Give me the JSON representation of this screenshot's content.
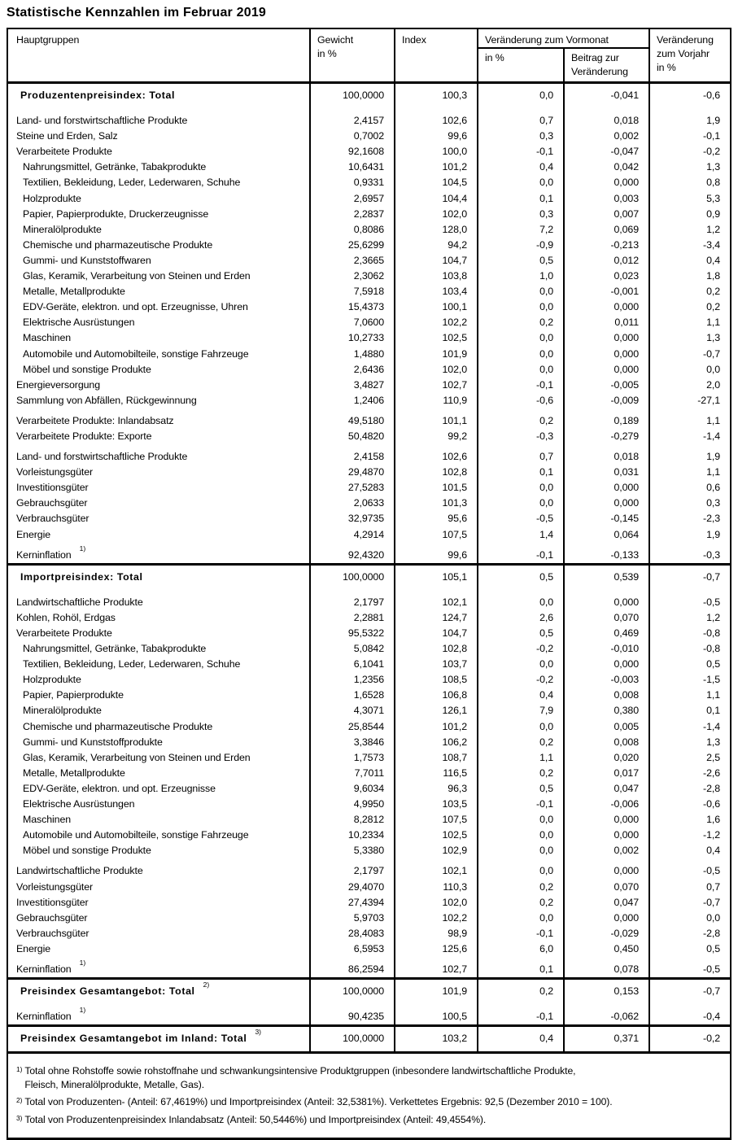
{
  "title": "Statistische Kennzahlen im Februar 2019",
  "colors": {
    "text": "#000000",
    "border": "#000000",
    "background": "#ffffff"
  },
  "header": {
    "hauptgruppen": "Hauptgruppen",
    "gewicht": [
      "Gewicht",
      "in %"
    ],
    "index": "Index",
    "vormonat_group": "Veränderung zum Vormonat",
    "vormonat_pct": "in %",
    "vormonat_beitrag": [
      "Beitrag zur",
      "Veränderung"
    ],
    "vorjahr": [
      "Veränderung",
      "zum Vorjahr",
      "in %"
    ]
  },
  "value_columns": [
    "gewicht",
    "index",
    "vormonat-pct",
    "vormonat-beitrag",
    "vorjahr"
  ],
  "sections": [
    {
      "id": "produzentenpreisindex",
      "groups": [
        {
          "rows": [
            {
              "label": "Produzentenpreisindex: Total",
              "bold": true,
              "values": [
                "100,0000",
                "100,3",
                "0,0",
                "-0,041",
                "-0,6"
              ]
            }
          ]
        },
        {
          "rows": [
            {
              "label": "Land- und forstwirtschaftliche Produkte",
              "values": [
                "2,4157",
                "102,6",
                "0,7",
                "0,018",
                "1,9"
              ]
            },
            {
              "label": "Steine und Erden, Salz",
              "values": [
                "0,7002",
                "99,6",
                "0,3",
                "0,002",
                "-0,1"
              ]
            },
            {
              "label": "Verarbeitete Produkte",
              "values": [
                "92,1608",
                "100,0",
                "-0,1",
                "-0,047",
                "-0,2"
              ]
            },
            {
              "label": "Nahrungsmittel, Getränke, Tabakprodukte",
              "indent": true,
              "values": [
                "10,6431",
                "101,2",
                "0,4",
                "0,042",
                "1,3"
              ]
            },
            {
              "label": "Textilien, Bekleidung, Leder, Lederwaren, Schuhe",
              "indent": true,
              "values": [
                "0,9331",
                "104,5",
                "0,0",
                "0,000",
                "0,8"
              ]
            },
            {
              "label": "Holzprodukte",
              "indent": true,
              "values": [
                "2,6957",
                "104,4",
                "0,1",
                "0,003",
                "5,3"
              ]
            },
            {
              "label": "Papier, Papierprodukte, Druckerzeugnisse",
              "indent": true,
              "values": [
                "2,2837",
                "102,0",
                "0,3",
                "0,007",
                "0,9"
              ]
            },
            {
              "label": "Mineralölprodukte",
              "indent": true,
              "values": [
                "0,8086",
                "128,0",
                "7,2",
                "0,069",
                "1,2"
              ]
            },
            {
              "label": "Chemische und pharmazeutische Produkte",
              "indent": true,
              "values": [
                "25,6299",
                "94,2",
                "-0,9",
                "-0,213",
                "-3,4"
              ]
            },
            {
              "label": "Gummi- und Kunststoffwaren",
              "indent": true,
              "values": [
                "2,3665",
                "104,7",
                "0,5",
                "0,012",
                "0,4"
              ]
            },
            {
              "label": "Glas, Keramik, Verarbeitung von Steinen und Erden",
              "indent": true,
              "values": [
                "2,3062",
                "103,8",
                "1,0",
                "0,023",
                "1,8"
              ]
            },
            {
              "label": "Metalle, Metallprodukte",
              "indent": true,
              "values": [
                "7,5918",
                "103,4",
                "0,0",
                "-0,001",
                "0,2"
              ]
            },
            {
              "label": "EDV-Geräte, elektron. und opt. Erzeugnisse, Uhren",
              "indent": true,
              "values": [
                "15,4373",
                "100,1",
                "0,0",
                "0,000",
                "0,2"
              ]
            },
            {
              "label": "Elektrische Ausrüstungen",
              "indent": true,
              "values": [
                "7,0600",
                "102,2",
                "0,2",
                "0,011",
                "1,1"
              ]
            },
            {
              "label": "Maschinen",
              "indent": true,
              "values": [
                "10,2733",
                "102,5",
                "0,0",
                "0,000",
                "1,3"
              ]
            },
            {
              "label": "Automobile und Automobilteile, sonstige Fahrzeuge",
              "indent": true,
              "values": [
                "1,4880",
                "101,9",
                "0,0",
                "0,000",
                "-0,7"
              ]
            },
            {
              "label": "Möbel und sonstige Produkte",
              "indent": true,
              "values": [
                "2,6436",
                "102,0",
                "0,0",
                "0,000",
                "0,0"
              ]
            },
            {
              "label": "Energieversorgung",
              "values": [
                "3,4827",
                "102,7",
                "-0,1",
                "-0,005",
                "2,0"
              ]
            },
            {
              "label": "Sammlung von Abfällen, Rückgewinnung",
              "values": [
                "1,2406",
                "110,9",
                "-0,6",
                "-0,009",
                "-27,1"
              ]
            }
          ]
        },
        {
          "rows": [
            {
              "label": "Verarbeitete Produkte: Inlandabsatz",
              "values": [
                "49,5180",
                "101,1",
                "0,2",
                "0,189",
                "1,1"
              ]
            },
            {
              "label": "Verarbeitete Produkte: Exporte",
              "values": [
                "50,4820",
                "99,2",
                "-0,3",
                "-0,279",
                "-1,4"
              ]
            }
          ]
        },
        {
          "rows": [
            {
              "label": "Land- und forstwirtschaftliche Produkte",
              "values": [
                "2,4158",
                "102,6",
                "0,7",
                "0,018",
                "1,9"
              ]
            },
            {
              "label": "Vorleistungsgüter",
              "values": [
                "29,4870",
                "102,8",
                "0,1",
                "0,031",
                "1,1"
              ]
            },
            {
              "label": "Investitionsgüter",
              "values": [
                "27,5283",
                "101,5",
                "0,0",
                "0,000",
                "0,6"
              ]
            },
            {
              "label": "Gebrauchsgüter",
              "values": [
                "2,0633",
                "101,3",
                "0,0",
                "0,000",
                "0,3"
              ]
            },
            {
              "label": "Verbrauchsgüter",
              "values": [
                "32,9735",
                "95,6",
                "-0,5",
                "-0,145",
                "-2,3"
              ]
            },
            {
              "label": "Energie",
              "values": [
                "4,2914",
                "107,5",
                "1,4",
                "0,064",
                "1,9"
              ]
            }
          ]
        },
        {
          "rows": [
            {
              "label": "Kerninflation",
              "sup": "1)",
              "values": [
                "92,4320",
                "99,6",
                "-0,1",
                "-0,133",
                "-0,3"
              ]
            }
          ]
        }
      ]
    },
    {
      "id": "importpreisindex",
      "groups": [
        {
          "rows": [
            {
              "label": "Importpreisindex: Total",
              "bold": true,
              "values": [
                "100,0000",
                "105,1",
                "0,5",
                "0,539",
                "-0,7"
              ]
            }
          ]
        },
        {
          "rows": [
            {
              "label": "Landwirtschaftliche Produkte",
              "values": [
                "2,1797",
                "102,1",
                "0,0",
                "0,000",
                "-0,5"
              ]
            },
            {
              "label": "Kohlen, Rohöl, Erdgas",
              "values": [
                "2,2881",
                "124,7",
                "2,6",
                "0,070",
                "1,2"
              ]
            },
            {
              "label": "Verarbeitete Produkte",
              "values": [
                "95,5322",
                "104,7",
                "0,5",
                "0,469",
                "-0,8"
              ]
            },
            {
              "label": "Nahrungsmittel, Getränke, Tabakprodukte",
              "indent": true,
              "values": [
                "5,0842",
                "102,8",
                "-0,2",
                "-0,010",
                "-0,8"
              ]
            },
            {
              "label": "Textilien, Bekleidung, Leder, Lederwaren, Schuhe",
              "indent": true,
              "values": [
                "6,1041",
                "103,7",
                "0,0",
                "0,000",
                "0,5"
              ]
            },
            {
              "label": "Holzprodukte",
              "indent": true,
              "values": [
                "1,2356",
                "108,5",
                "-0,2",
                "-0,003",
                "-1,5"
              ]
            },
            {
              "label": "Papier, Papierprodukte",
              "indent": true,
              "values": [
                "1,6528",
                "106,8",
                "0,4",
                "0,008",
                "1,1"
              ]
            },
            {
              "label": "Mineralölprodukte",
              "indent": true,
              "values": [
                "4,3071",
                "126,1",
                "7,9",
                "0,380",
                "0,1"
              ]
            },
            {
              "label": "Chemische und pharmazeutische Produkte",
              "indent": true,
              "values": [
                "25,8544",
                "101,2",
                "0,0",
                "0,005",
                "-1,4"
              ]
            },
            {
              "label": "Gummi- und Kunststoffprodukte",
              "indent": true,
              "values": [
                "3,3846",
                "106,2",
                "0,2",
                "0,008",
                "1,3"
              ]
            },
            {
              "label": "Glas, Keramik, Verarbeitung von Steinen und Erden",
              "indent": true,
              "values": [
                "1,7573",
                "108,7",
                "1,1",
                "0,020",
                "2,5"
              ]
            },
            {
              "label": "Metalle, Metallprodukte",
              "indent": true,
              "values": [
                "7,7011",
                "116,5",
                "0,2",
                "0,017",
                "-2,6"
              ]
            },
            {
              "label": "EDV-Geräte, elektron. und opt. Erzeugnisse",
              "indent": true,
              "values": [
                "9,6034",
                "96,3",
                "0,5",
                "0,047",
                "-2,8"
              ]
            },
            {
              "label": "Elektrische Ausrüstungen",
              "indent": true,
              "values": [
                "4,9950",
                "103,5",
                "-0,1",
                "-0,006",
                "-0,6"
              ]
            },
            {
              "label": "Maschinen",
              "indent": true,
              "values": [
                "8,2812",
                "107,5",
                "0,0",
                "0,000",
                "1,6"
              ]
            },
            {
              "label": "Automobile und Automobilteile, sonstige Fahrzeuge",
              "indent": true,
              "values": [
                "10,2334",
                "102,5",
                "0,0",
                "0,000",
                "-1,2"
              ]
            },
            {
              "label": "Möbel und sonstige Produkte",
              "indent": true,
              "values": [
                "5,3380",
                "102,9",
                "0,0",
                "0,002",
                "0,4"
              ]
            }
          ]
        },
        {
          "rows": [
            {
              "label": "Landwirtschaftliche Produkte",
              "values": [
                "2,1797",
                "102,1",
                "0,0",
                "0,000",
                "-0,5"
              ]
            },
            {
              "label": "Vorleistungsgüter",
              "values": [
                "29,4070",
                "110,3",
                "0,2",
                "0,070",
                "0,7"
              ]
            },
            {
              "label": "Investitionsgüter",
              "values": [
                "27,4394",
                "102,0",
                "0,2",
                "0,047",
                "-0,7"
              ]
            },
            {
              "label": "Gebrauchsgüter",
              "values": [
                "5,9703",
                "102,2",
                "0,0",
                "0,000",
                "0,0"
              ]
            },
            {
              "label": "Verbrauchsgüter",
              "values": [
                "28,4083",
                "98,9",
                "-0,1",
                "-0,029",
                "-2,8"
              ]
            },
            {
              "label": "Energie",
              "values": [
                "6,5953",
                "125,6",
                "6,0",
                "0,450",
                "0,5"
              ]
            }
          ]
        },
        {
          "rows": [
            {
              "label": "Kerninflation",
              "sup": "1)",
              "values": [
                "86,2594",
                "102,7",
                "0,1",
                "0,078",
                "-0,5"
              ]
            }
          ]
        }
      ]
    },
    {
      "id": "gesamtangebot",
      "groups": [
        {
          "rows": [
            {
              "label": "Preisindex Gesamtangebot: Total",
              "bold": true,
              "sup": "2)",
              "values": [
                "100,0000",
                "101,9",
                "0,2",
                "0,153",
                "-0,7"
              ]
            }
          ]
        },
        {
          "rows": [
            {
              "label": "Kerninflation",
              "sup": "1)",
              "values": [
                "90,4235",
                "100,5",
                "-0,1",
                "-0,062",
                "-0,4"
              ]
            }
          ]
        }
      ]
    },
    {
      "id": "gesamtangebot-inland",
      "groups": [
        {
          "rows": [
            {
              "label": "Preisindex Gesamtangebot im Inland: Total",
              "bold": true,
              "sup": "3)",
              "values": [
                "100,0000",
                "103,2",
                "0,4",
                "0,371",
                "-0,2"
              ]
            }
          ]
        }
      ]
    }
  ],
  "footnotes": [
    {
      "marker": "1)",
      "lines": [
        "Total ohne Rohstoffe sowie rohstoffnahe und schwankungsintensive Produktgruppen (inbesondere landwirtschaftliche Produkte,",
        "Fleisch, Mineralölprodukte, Metalle, Gas)."
      ]
    },
    {
      "marker": "2)",
      "lines": [
        "Total von Produzenten- (Anteil: 67,4619%) und Importpreisindex (Anteil: 32,5381%). Verkettetes Ergebnis: 92,5 (Dezember 2010 = 100)."
      ]
    },
    {
      "marker": "3)",
      "lines": [
        "Total von Produzentenpreisindex Inlandabsatz (Anteil: 50,5446%) und Importpreisindex (Anteil: 49,4554%)."
      ]
    }
  ]
}
